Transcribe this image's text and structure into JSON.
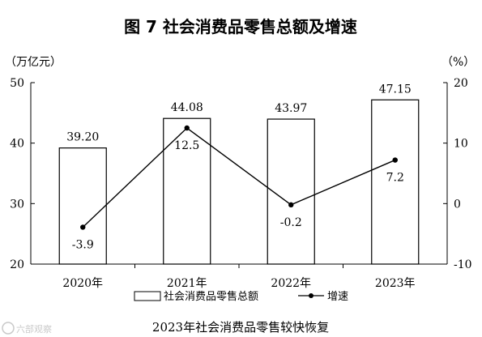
{
  "chart_data": {
    "type": "bar",
    "title": "图 7    社会消费品零售总额及增速",
    "subtitle": "2023年社会消费品零售较快恢复",
    "y_left_unit": "（万亿元）",
    "y_right_unit": "（%）",
    "categories": [
      "2020年",
      "2021年",
      "2022年",
      "2023年"
    ],
    "y_left_lim": [
      20,
      50
    ],
    "y_left_ticks": [
      "20",
      "30",
      "40",
      "50"
    ],
    "y_right_lim": [
      -10,
      20
    ],
    "y_right_ticks": [
      "-10",
      "0",
      "10",
      "20"
    ],
    "series": [
      {
        "name": "社会消费品零售总额",
        "kind": "bar",
        "axis": "left",
        "values": [
          39.2,
          44.08,
          43.97,
          47.15
        ],
        "labels": [
          "39.20",
          "44.08",
          "43.97",
          "47.15"
        ]
      },
      {
        "name": "增速",
        "kind": "line",
        "axis": "right",
        "values": [
          -3.9,
          12.5,
          -0.2,
          7.2
        ],
        "labels": [
          "-3.9",
          "12.5",
          "-0.2",
          "7.2"
        ]
      }
    ],
    "grid": false,
    "legend_position": "bottom"
  },
  "watermark": "六部观察",
  "colors": {
    "bar_fill": "#ffffff",
    "bar_stroke": "#000000",
    "line": "#000000",
    "axis": "#000000"
  }
}
